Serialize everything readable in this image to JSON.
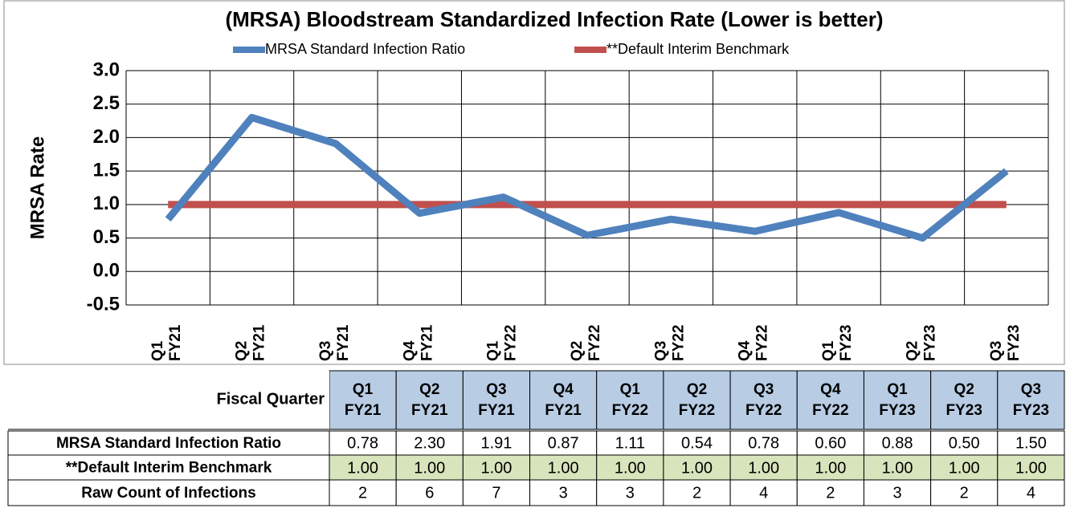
{
  "chart_data": {
    "type": "line",
    "title": "(MRSA) Bloodstream Standardized Infection Rate (Lower is better)",
    "y_label": "MRSA Rate",
    "categories": [
      "Q1 FY21",
      "Q2 FY21",
      "Q3 FY21",
      "Q4 FY21",
      "Q1 FY22",
      "Q2 FY22",
      "Q3 FY22",
      "Q4 FY22",
      "Q1 FY23",
      "Q2 FY23",
      "Q3 FY23"
    ],
    "series": [
      {
        "name": "MRSA Standard Infection Ratio",
        "color": "#4f81bd",
        "values": [
          0.78,
          2.3,
          1.91,
          0.87,
          1.11,
          0.54,
          0.78,
          0.6,
          0.88,
          0.5,
          1.5
        ],
        "value_labels": [
          "0.78",
          "2.30",
          "1.91",
          "0.87",
          "1.11",
          "0.54",
          "0.78",
          "0.60",
          "0.88",
          "0.50",
          "1.50"
        ]
      },
      {
        "name": "**Default Interim Benchmark",
        "color": "#c0504d",
        "values": [
          1,
          1,
          1,
          1,
          1,
          1,
          1,
          1,
          1,
          1,
          1
        ],
        "value_labels": [
          "1.00",
          "1.00",
          "1.00",
          "1.00",
          "1.00",
          "1.00",
          "1.00",
          "1.00",
          "1.00",
          "1.00",
          "1.00"
        ]
      }
    ],
    "ylim": [
      -0.5,
      3.0
    ],
    "yticks": [
      {
        "value": -0.5,
        "label": "-0.5"
      },
      {
        "value": 0,
        "label": "0.0"
      },
      {
        "value": 0.5,
        "label": "0.5"
      },
      {
        "value": 1,
        "label": "1.0"
      },
      {
        "value": 1.5,
        "label": "1.5"
      },
      {
        "value": 2,
        "label": "2.0"
      },
      {
        "value": 2.5,
        "label": "2.5"
      },
      {
        "value": 3,
        "label": "3.0"
      }
    ],
    "grid": true,
    "legend": "top"
  },
  "table": {
    "corner": "Fiscal Quarter",
    "raw_label": "Raw Count of Infections",
    "raw_counts": [
      2,
      6,
      7,
      3,
      3,
      2,
      4,
      2,
      3,
      2,
      4
    ]
  }
}
